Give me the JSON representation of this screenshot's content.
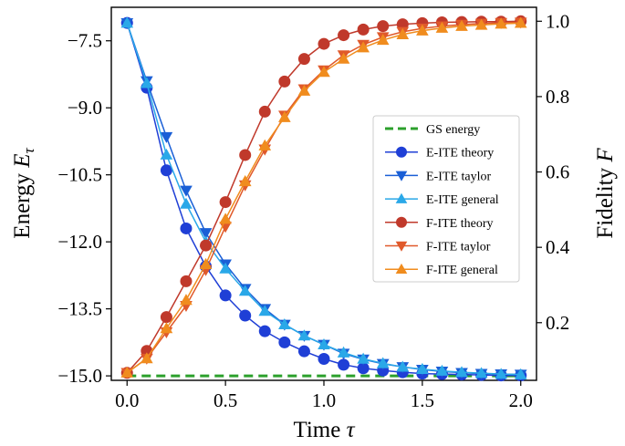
{
  "chart_data": {
    "type": "line",
    "xlabel": "Time τ",
    "xlabel_text": "Time",
    "xlabel_symbol": "τ",
    "ylabel_left_text": "Energy",
    "ylabel_left_symbol": "E",
    "ylabel_left_subscript": "τ",
    "ylabel_right_text": "Fidelity",
    "ylabel_right_symbol": "F",
    "xlim": [
      -0.08,
      2.08
    ],
    "ylim_left": [
      -15.1,
      -6.75
    ],
    "ylim_right": [
      0.047,
      1.037
    ],
    "xticks": [
      0.0,
      0.5,
      1.0,
      1.5,
      2.0
    ],
    "xtick_labels": [
      "0.0",
      "0.5",
      "1.0",
      "1.5",
      "2.0"
    ],
    "yticks_left": [
      -7.5,
      -9.0,
      -10.5,
      -12.0,
      -13.5,
      -15.0
    ],
    "ytick_labels_left": [
      "−7.5",
      "−9.0",
      "−10.5",
      "−12.0",
      "−13.5",
      "−15.0"
    ],
    "yticks_right": [
      0.2,
      0.4,
      0.6,
      0.8,
      1.0
    ],
    "ytick_labels_right": [
      "0.2",
      "0.4",
      "0.6",
      "0.8",
      "1.0"
    ],
    "legend_position": "center-right",
    "legend": [
      "GS energy",
      "E-ITE theory",
      "E-ITE taylor",
      "E-ITE general",
      "F-ITE theory",
      "F-ITE taylor",
      "F-ITE general"
    ],
    "x": [
      0.0,
      0.1,
      0.2,
      0.3,
      0.4,
      0.5,
      0.6,
      0.7,
      0.8,
      0.9,
      1.0,
      1.1,
      1.2,
      1.3,
      1.4,
      1.5,
      1.6,
      1.7,
      1.8,
      1.9,
      2.0
    ],
    "series": [
      {
        "name": "GS energy",
        "axis": "left",
        "style": "dashed",
        "marker": "none",
        "color": "#2ca02c",
        "x": [
          0.0,
          2.0
        ],
        "values": [
          -15.0,
          -15.0
        ]
      },
      {
        "name": "E-ITE theory",
        "axis": "left",
        "marker": "circle",
        "color": "#1f3fd6",
        "values": [
          -7.1,
          -8.55,
          -10.4,
          -11.7,
          -12.55,
          -13.2,
          -13.65,
          -14.0,
          -14.25,
          -14.45,
          -14.62,
          -14.75,
          -14.83,
          -14.88,
          -14.92,
          -14.95,
          -14.96,
          -14.97,
          -14.98,
          -14.99,
          -14.99
        ]
      },
      {
        "name": "E-ITE taylor",
        "axis": "left",
        "marker": "triangle-down",
        "color": "#1a5fd6",
        "values": [
          -7.1,
          -8.4,
          -9.65,
          -10.85,
          -11.8,
          -12.5,
          -13.05,
          -13.5,
          -13.85,
          -14.1,
          -14.3,
          -14.5,
          -14.63,
          -14.73,
          -14.8,
          -14.86,
          -14.9,
          -14.93,
          -14.95,
          -14.96,
          -14.97
        ]
      },
      {
        "name": "E-ITE general",
        "axis": "left",
        "marker": "triangle-up",
        "color": "#2aa8e8",
        "values": [
          -7.1,
          -8.45,
          -10.05,
          -11.15,
          -12.0,
          -12.6,
          -13.1,
          -13.55,
          -13.85,
          -14.1,
          -14.3,
          -14.48,
          -14.62,
          -14.72,
          -14.8,
          -14.85,
          -14.89,
          -14.92,
          -14.94,
          -14.96,
          -14.97
        ]
      },
      {
        "name": "F-ITE theory",
        "axis": "right",
        "marker": "circle",
        "color": "#c0392b",
        "values": [
          0.067,
          0.125,
          0.215,
          0.31,
          0.405,
          0.52,
          0.645,
          0.76,
          0.84,
          0.9,
          0.94,
          0.963,
          0.978,
          0.987,
          0.992,
          0.995,
          0.997,
          0.998,
          0.999,
          0.999,
          1.0
        ]
      },
      {
        "name": "F-ITE taylor",
        "axis": "right",
        "marker": "triangle-down",
        "color": "#e0592a",
        "values": [
          0.067,
          0.105,
          0.175,
          0.245,
          0.34,
          0.455,
          0.565,
          0.66,
          0.75,
          0.82,
          0.87,
          0.91,
          0.938,
          0.958,
          0.972,
          0.981,
          0.987,
          0.991,
          0.994,
          0.996,
          0.997
        ]
      },
      {
        "name": "F-ITE general",
        "axis": "right",
        "marker": "triangle-up",
        "color": "#f08c1e",
        "values": [
          0.067,
          0.105,
          0.185,
          0.26,
          0.355,
          0.475,
          0.575,
          0.67,
          0.745,
          0.815,
          0.865,
          0.9,
          0.93,
          0.95,
          0.965,
          0.975,
          0.982,
          0.987,
          0.99,
          0.993,
          0.995
        ]
      }
    ]
  }
}
